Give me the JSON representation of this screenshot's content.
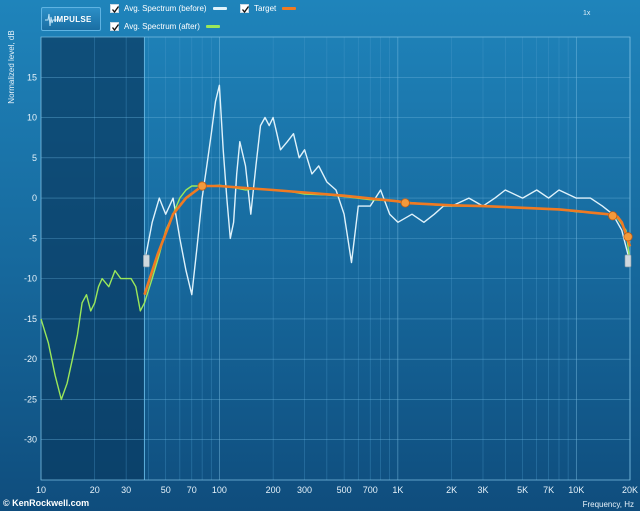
{
  "header": {
    "impulse_label": "IMPULSE",
    "legend": [
      {
        "label": "Avg. Spectrum (before)",
        "color": "#dff2fb",
        "checked": true
      },
      {
        "label": "Target",
        "color": "#f07a22",
        "checked": true
      },
      {
        "label": "Avg. Spectrum (after)",
        "color": "#9be85a",
        "checked": true
      }
    ],
    "zoom_label": "1x"
  },
  "credit": "© KenRockwell.com",
  "chart_data": {
    "type": "line",
    "xlabel": "Frequency, Hz",
    "ylabel": "Normalized level, dB",
    "x_scale": "log",
    "xlim": [
      10,
      20000
    ],
    "ylim": [
      -35,
      20
    ],
    "grid": true,
    "legend": "top-left",
    "x_ticks": [
      {
        "value": 10,
        "label": "10"
      },
      {
        "value": 20,
        "label": "20"
      },
      {
        "value": 30,
        "label": "30"
      },
      {
        "value": 50,
        "label": "50"
      },
      {
        "value": 70,
        "label": "70"
      },
      {
        "value": 100,
        "label": "100"
      },
      {
        "value": 200,
        "label": "200"
      },
      {
        "value": 300,
        "label": "300"
      },
      {
        "value": 500,
        "label": "500"
      },
      {
        "value": 700,
        "label": "700"
      },
      {
        "value": 1000,
        "label": "1K"
      },
      {
        "value": 2000,
        "label": "2K"
      },
      {
        "value": 3000,
        "label": "3K"
      },
      {
        "value": 5000,
        "label": "5K"
      },
      {
        "value": 7000,
        "label": "7K"
      },
      {
        "value": 10000,
        "label": "10K"
      },
      {
        "value": 20000,
        "label": "20K"
      }
    ],
    "y_ticks": [
      15,
      10,
      5,
      0,
      -5,
      -10,
      -15,
      -20,
      -25,
      -30
    ],
    "excluded_range_hz": [
      10,
      38
    ],
    "series": [
      {
        "name": "Avg. Spectrum (before)",
        "color": "#dff2fb",
        "x": [
          38,
          42,
          46,
          50,
          55,
          60,
          65,
          70,
          75,
          80,
          85,
          90,
          95,
          100,
          105,
          110,
          115,
          120,
          125,
          130,
          140,
          150,
          160,
          170,
          180,
          190,
          200,
          210,
          220,
          240,
          260,
          280,
          300,
          330,
          360,
          400,
          450,
          500,
          550,
          600,
          700,
          800,
          900,
          1000,
          1200,
          1400,
          1600,
          1800,
          2000,
          2500,
          3000,
          3500,
          4000,
          5000,
          6000,
          7000,
          8000,
          10000,
          12000,
          14000,
          16000,
          18000,
          20000
        ],
        "y": [
          -8,
          -3,
          0,
          -2,
          0,
          -5,
          -9,
          -12,
          -6,
          0,
          4,
          8,
          12,
          14,
          6,
          0,
          -5,
          -3,
          3,
          7,
          4,
          -2,
          4,
          9,
          10,
          9,
          10,
          8,
          6,
          7,
          8,
          5,
          6,
          3,
          4,
          2,
          1,
          -2,
          -8,
          -1,
          -1,
          1,
          -2,
          -3,
          -2,
          -3,
          -2,
          -1,
          -1,
          0,
          -1,
          0,
          1,
          0,
          1,
          0,
          1,
          0,
          0,
          -1,
          -2,
          -4,
          -8
        ]
      },
      {
        "name": "Target",
        "color": "#f07a22",
        "x": [
          38,
          45,
          55,
          65,
          80,
          100,
          150,
          200,
          300,
          500,
          1000,
          1100,
          2000,
          3000,
          5000,
          8000,
          10000,
          12000,
          15000,
          17000,
          18000,
          19000,
          20000
        ],
        "y": [
          -12,
          -7,
          -2,
          0,
          1.5,
          1.5,
          1.2,
          1,
          0.7,
          0.3,
          -0.4,
          -0.6,
          -0.9,
          -1,
          -1.2,
          -1.4,
          -1.6,
          -1.8,
          -2,
          -2.3,
          -3,
          -4.5,
          -6
        ],
        "markers": [
          {
            "x": 80,
            "y": 1.5
          },
          {
            "x": 1100,
            "y": -0.6
          },
          {
            "x": 16000,
            "y": -2.2
          },
          {
            "x": 19500,
            "y": -4.8
          }
        ]
      },
      {
        "name": "Avg. Spectrum (after)",
        "color": "#9be85a",
        "x": [
          10,
          11,
          12,
          13,
          14,
          15,
          16,
          17,
          18,
          19,
          20,
          21,
          22,
          24,
          26,
          28,
          30,
          32,
          34,
          36,
          38,
          42,
          46,
          50,
          55,
          60,
          65,
          70,
          75,
          80,
          90,
          100,
          120,
          140,
          160,
          200,
          250,
          300,
          400,
          500,
          700,
          1000,
          1500,
          2000,
          3000,
          5000,
          8000,
          10000,
          12000,
          15000,
          17000,
          19000,
          20000
        ],
        "y": [
          -15,
          -18,
          -22,
          -25,
          -23,
          -20,
          -17,
          -13,
          -12,
          -14,
          -13,
          -11,
          -10,
          -11,
          -9,
          -10,
          -10,
          -10,
          -11,
          -14,
          -13,
          -10,
          -7,
          -4,
          -2,
          0,
          1,
          1.5,
          1.5,
          1.5,
          1.5,
          1.6,
          1.3,
          1.0,
          1.2,
          1.0,
          0.8,
          0.5,
          0.4,
          0.2,
          -0.2,
          -0.4,
          -0.8,
          -1,
          -1,
          -1.2,
          -1.4,
          -1.7,
          -1.8,
          -2,
          -2.5,
          -4,
          -8
        ]
      }
    ]
  }
}
